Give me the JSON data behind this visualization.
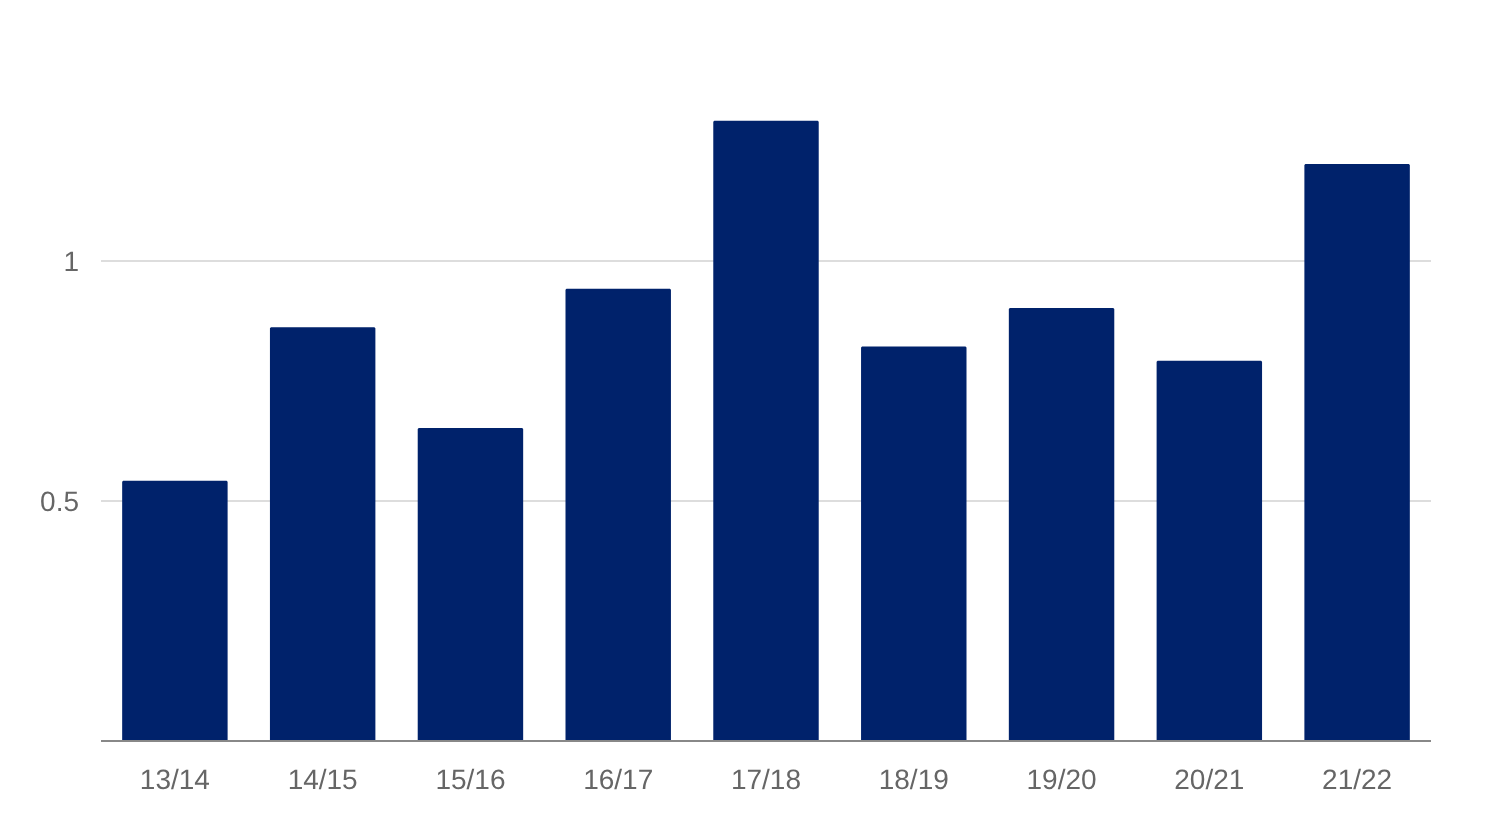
{
  "chart_data": {
    "type": "bar",
    "categories": [
      "13/14",
      "14/15",
      "15/16",
      "16/17",
      "17/18",
      "18/19",
      "19/20",
      "20/21",
      "21/22"
    ],
    "values": [
      0.54,
      0.86,
      0.65,
      0.94,
      1.29,
      0.82,
      0.9,
      0.79,
      1.2
    ],
    "color": "#00226b",
    "ylim": [
      0,
      1.3
    ],
    "yticks": [
      {
        "value": 0,
        "label": null
      },
      0.5,
      1
    ],
    "grid": "y"
  }
}
